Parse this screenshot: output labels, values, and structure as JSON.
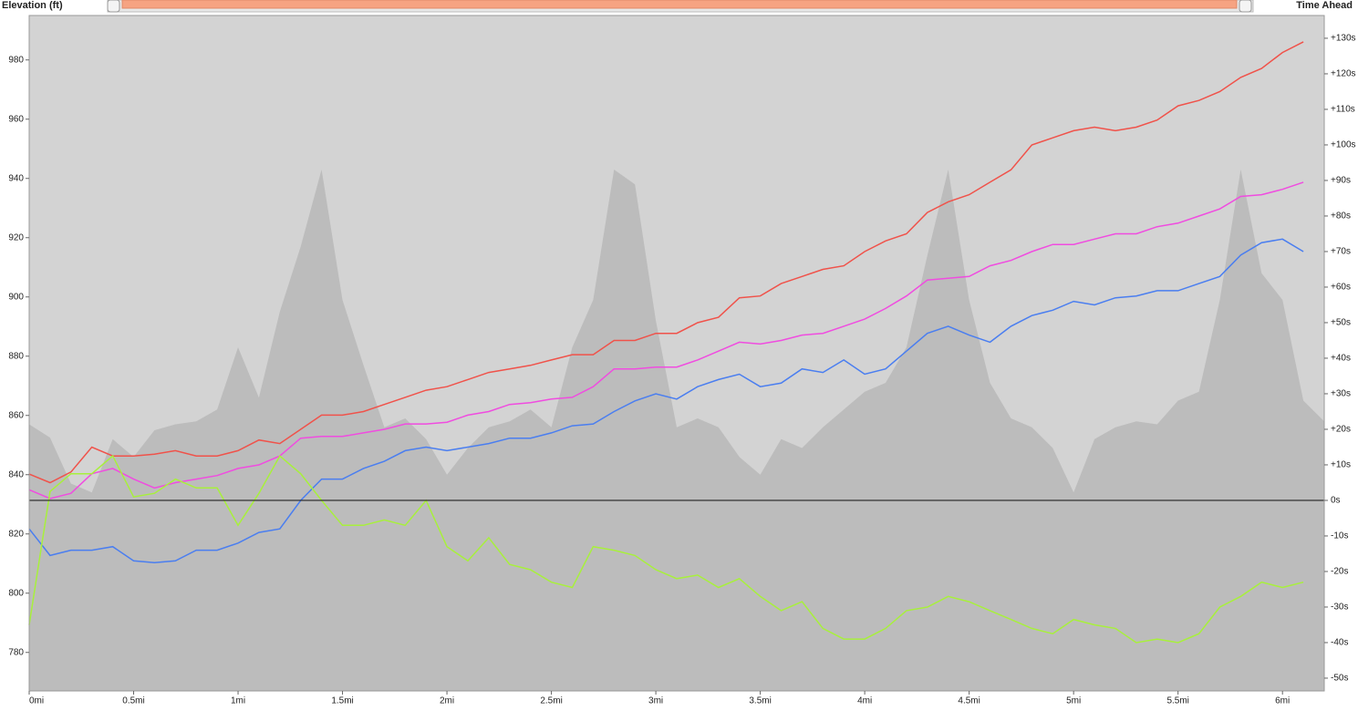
{
  "chart_data": {
    "type": "line",
    "ylabel": "Elevation (ft)",
    "y2label": "Time Ahead",
    "x": [
      0,
      0.1,
      0.2,
      0.3,
      0.4,
      0.5,
      0.6,
      0.7,
      0.8,
      0.9,
      1,
      1.1,
      1.2,
      1.3,
      1.4,
      1.5,
      1.6,
      1.7,
      1.8,
      1.9,
      2,
      2.1,
      2.2,
      2.3,
      2.4,
      2.5,
      2.6,
      2.7,
      2.8,
      2.9,
      3,
      3.1,
      3.2,
      3.3,
      3.4,
      3.5,
      3.6,
      3.7,
      3.8,
      3.9,
      4,
      4.1,
      4.2,
      4.3,
      4.4,
      4.5,
      4.6,
      4.7,
      4.8,
      4.9,
      5,
      5.1,
      5.2,
      5.3,
      5.4,
      5.5,
      5.6,
      5.7,
      5.8,
      5.9,
      6,
      6.1,
      6.2
    ],
    "xlim": [
      0,
      6.2
    ],
    "xticks": [
      {
        "value": 0,
        "label": "0mi"
      },
      {
        "value": 0.5,
        "label": "0.5mi"
      },
      {
        "value": 1,
        "label": "1mi"
      },
      {
        "value": 1.5,
        "label": "1.5mi"
      },
      {
        "value": 2,
        "label": "2mi"
      },
      {
        "value": 2.5,
        "label": "2.5mi"
      },
      {
        "value": 3,
        "label": "3mi"
      },
      {
        "value": 3.5,
        "label": "3.5mi"
      },
      {
        "value": 4,
        "label": "4mi"
      },
      {
        "value": 4.5,
        "label": "4.5mi"
      },
      {
        "value": 5,
        "label": "5mi"
      },
      {
        "value": 5.5,
        "label": "5.5mi"
      },
      {
        "value": 6,
        "label": "6mi"
      }
    ],
    "ylim": [
      767,
      995
    ],
    "yticks": [
      780,
      800,
      820,
      840,
      860,
      880,
      900,
      920,
      940,
      960,
      980
    ],
    "y2lim": [
      -53.6,
      136.4
    ],
    "y2ticks": [
      {
        "value": -50,
        "label": "-50s"
      },
      {
        "value": -40,
        "label": "-40s"
      },
      {
        "value": -30,
        "label": "-30s"
      },
      {
        "value": -20,
        "label": "-20s"
      },
      {
        "value": -10,
        "label": "-10s"
      },
      {
        "value": 0,
        "label": "0s"
      },
      {
        "value": 10,
        "label": "+10s"
      },
      {
        "value": 20,
        "label": "+20s"
      },
      {
        "value": 30,
        "label": "+30s"
      },
      {
        "value": 40,
        "label": "+40s"
      },
      {
        "value": 50,
        "label": "+50s"
      },
      {
        "value": 60,
        "label": "+60s"
      },
      {
        "value": 70,
        "label": "+70s"
      },
      {
        "value": 80,
        "label": "+80s"
      },
      {
        "value": 90,
        "label": "+90s"
      },
      {
        "value": 100,
        "label": "+100s"
      },
      {
        "value": 110,
        "label": "+110s"
      },
      {
        "value": 120,
        "label": "+120s"
      },
      {
        "value": 130,
        "label": "+130s"
      }
    ],
    "background": "#d3d3d3",
    "series": [
      {
        "kind": "area",
        "axis": "y",
        "color": "#bcbcbc",
        "values": [
          857,
          852.5,
          837,
          834,
          852,
          846,
          855,
          857,
          858,
          862,
          883,
          866,
          895,
          917,
          943,
          899,
          877,
          856,
          859,
          852,
          840,
          849,
          856,
          858,
          862,
          856,
          883,
          899,
          943,
          938,
          892,
          856,
          859,
          856,
          846,
          840,
          852,
          849,
          856,
          862,
          868,
          871,
          883,
          914,
          943,
          899,
          871,
          859,
          856,
          849,
          834,
          852,
          856,
          858,
          857,
          865,
          868,
          899,
          943,
          908,
          899,
          865,
          858
        ]
      },
      {
        "kind": "line",
        "axis": "y2",
        "color": "#f0524a",
        "values": [
          7.4,
          5,
          8,
          15,
          12.5,
          12.5,
          13,
          14,
          12.5,
          12.5,
          14,
          17,
          16,
          20,
          24,
          24,
          25,
          27,
          29,
          31,
          32,
          34,
          36,
          37,
          38,
          39.5,
          41,
          41,
          45,
          45,
          47,
          47,
          50,
          51.5,
          57,
          57.5,
          61,
          63,
          65,
          66,
          70,
          73,
          75,
          81,
          84,
          86,
          89.5,
          93,
          100,
          102,
          104,
          105,
          104,
          105,
          107,
          111,
          112.5,
          115,
          119,
          121.5,
          126,
          129,
          null
        ]
      },
      {
        "kind": "line",
        "axis": "y2",
        "color": "#f04ce0",
        "values": [
          3,
          0.5,
          2,
          7.5,
          9,
          6,
          3.5,
          5,
          6,
          7,
          9,
          10,
          12.5,
          17.5,
          18,
          18,
          19,
          20,
          21.5,
          21.5,
          22,
          24,
          25,
          27,
          27.5,
          28.5,
          29,
          32,
          37,
          37,
          37.5,
          37.5,
          39.5,
          42,
          44.5,
          44,
          45,
          46.5,
          47,
          49,
          51,
          54,
          57.5,
          62,
          62.5,
          63,
          66,
          67.5,
          70,
          72,
          72,
          73.5,
          75,
          75,
          77,
          78,
          80,
          82,
          85.5,
          86,
          87.5,
          89.5,
          null
        ]
      },
      {
        "kind": "line",
        "axis": "y2",
        "color": "#4a7ef0",
        "values": [
          -8,
          -15.5,
          -14,
          -14,
          -13,
          -17,
          -17.5,
          -17,
          -14,
          -14,
          -12,
          -9,
          -8,
          0,
          6,
          6,
          9,
          11,
          14,
          15,
          14,
          15,
          16,
          17.5,
          17.5,
          19,
          21,
          21.5,
          25,
          28,
          30,
          28.5,
          32,
          34,
          35.5,
          32,
          33,
          37,
          36,
          39.5,
          35.5,
          37,
          42,
          47,
          49,
          46.5,
          44.5,
          49,
          52,
          53.5,
          56,
          55,
          57,
          57.5,
          59,
          59,
          61,
          63,
          69,
          72.5,
          73.5,
          70,
          null
        ]
      },
      {
        "kind": "line",
        "axis": "y2",
        "color": "#a8f03c",
        "values": [
          -35,
          2.5,
          7.5,
          7.5,
          12.5,
          1,
          2,
          6,
          3.5,
          3.5,
          -7,
          2,
          12.5,
          7.5,
          0,
          -7,
          -7,
          -5.5,
          -7,
          0,
          -13,
          -17,
          -10.5,
          -18,
          -19.5,
          -23,
          -24.5,
          -13,
          -14,
          -15.5,
          -19.5,
          -22,
          -21,
          -24.5,
          -22,
          -27,
          -31,
          -28.5,
          -36,
          -39,
          -39,
          -36,
          -31,
          -30,
          -27,
          -28.5,
          -31,
          -33.5,
          -36,
          -37.5,
          -33.5,
          -35,
          -36,
          -40,
          -39,
          -40,
          -37.5,
          -30,
          -27,
          -23,
          -24.5,
          -23,
          null
        ]
      }
    ]
  }
}
